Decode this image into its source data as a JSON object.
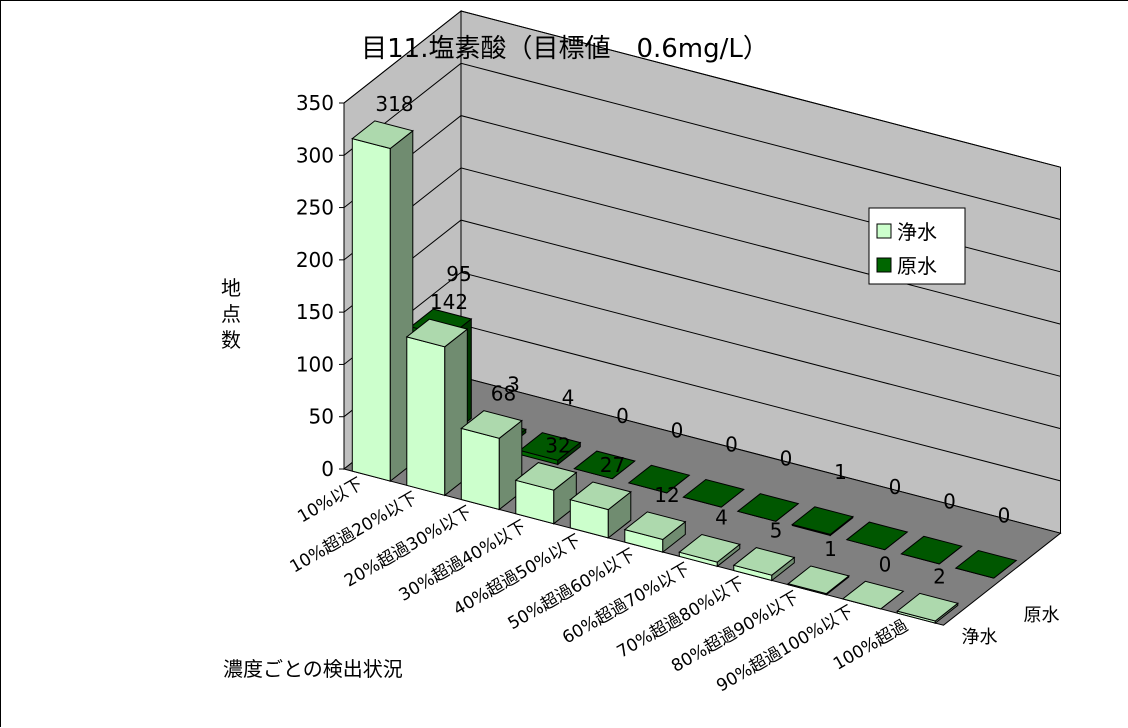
{
  "colors": {
    "front_series": "#ccffcc",
    "back_series": "#006600",
    "wall": "#c0c0c0",
    "floor": "#808080",
    "frame": "#000000"
  },
  "chart_data": {
    "type": "bar",
    "projection": "3d",
    "title": "目11.塩素酸（目標値　0.6mg/L）",
    "ylabel": "地点数",
    "xlabel": "濃度ごとの検出状況",
    "ylim": [
      0,
      350
    ],
    "yticks": [
      0,
      50,
      100,
      150,
      200,
      250,
      300,
      350
    ],
    "grid": true,
    "legend_position": "right",
    "categories": [
      "10%以下",
      "10%超過20%以下",
      "20%超過30%以下",
      "30%超過40%以下",
      "40%超過50%以下",
      "50%超過60%以下",
      "60%超過70%以下",
      "70%超過80%以下",
      "80%超過90%以下",
      "90%超過100%以下",
      "100%超過"
    ],
    "series": [
      {
        "name": "浄水",
        "values": [
          318,
          142,
          68,
          32,
          27,
          12,
          4,
          5,
          1,
          0,
          2
        ]
      },
      {
        "name": "原水",
        "values": [
          95,
          3,
          4,
          0,
          0,
          0,
          0,
          1,
          0,
          0,
          0
        ]
      }
    ]
  }
}
